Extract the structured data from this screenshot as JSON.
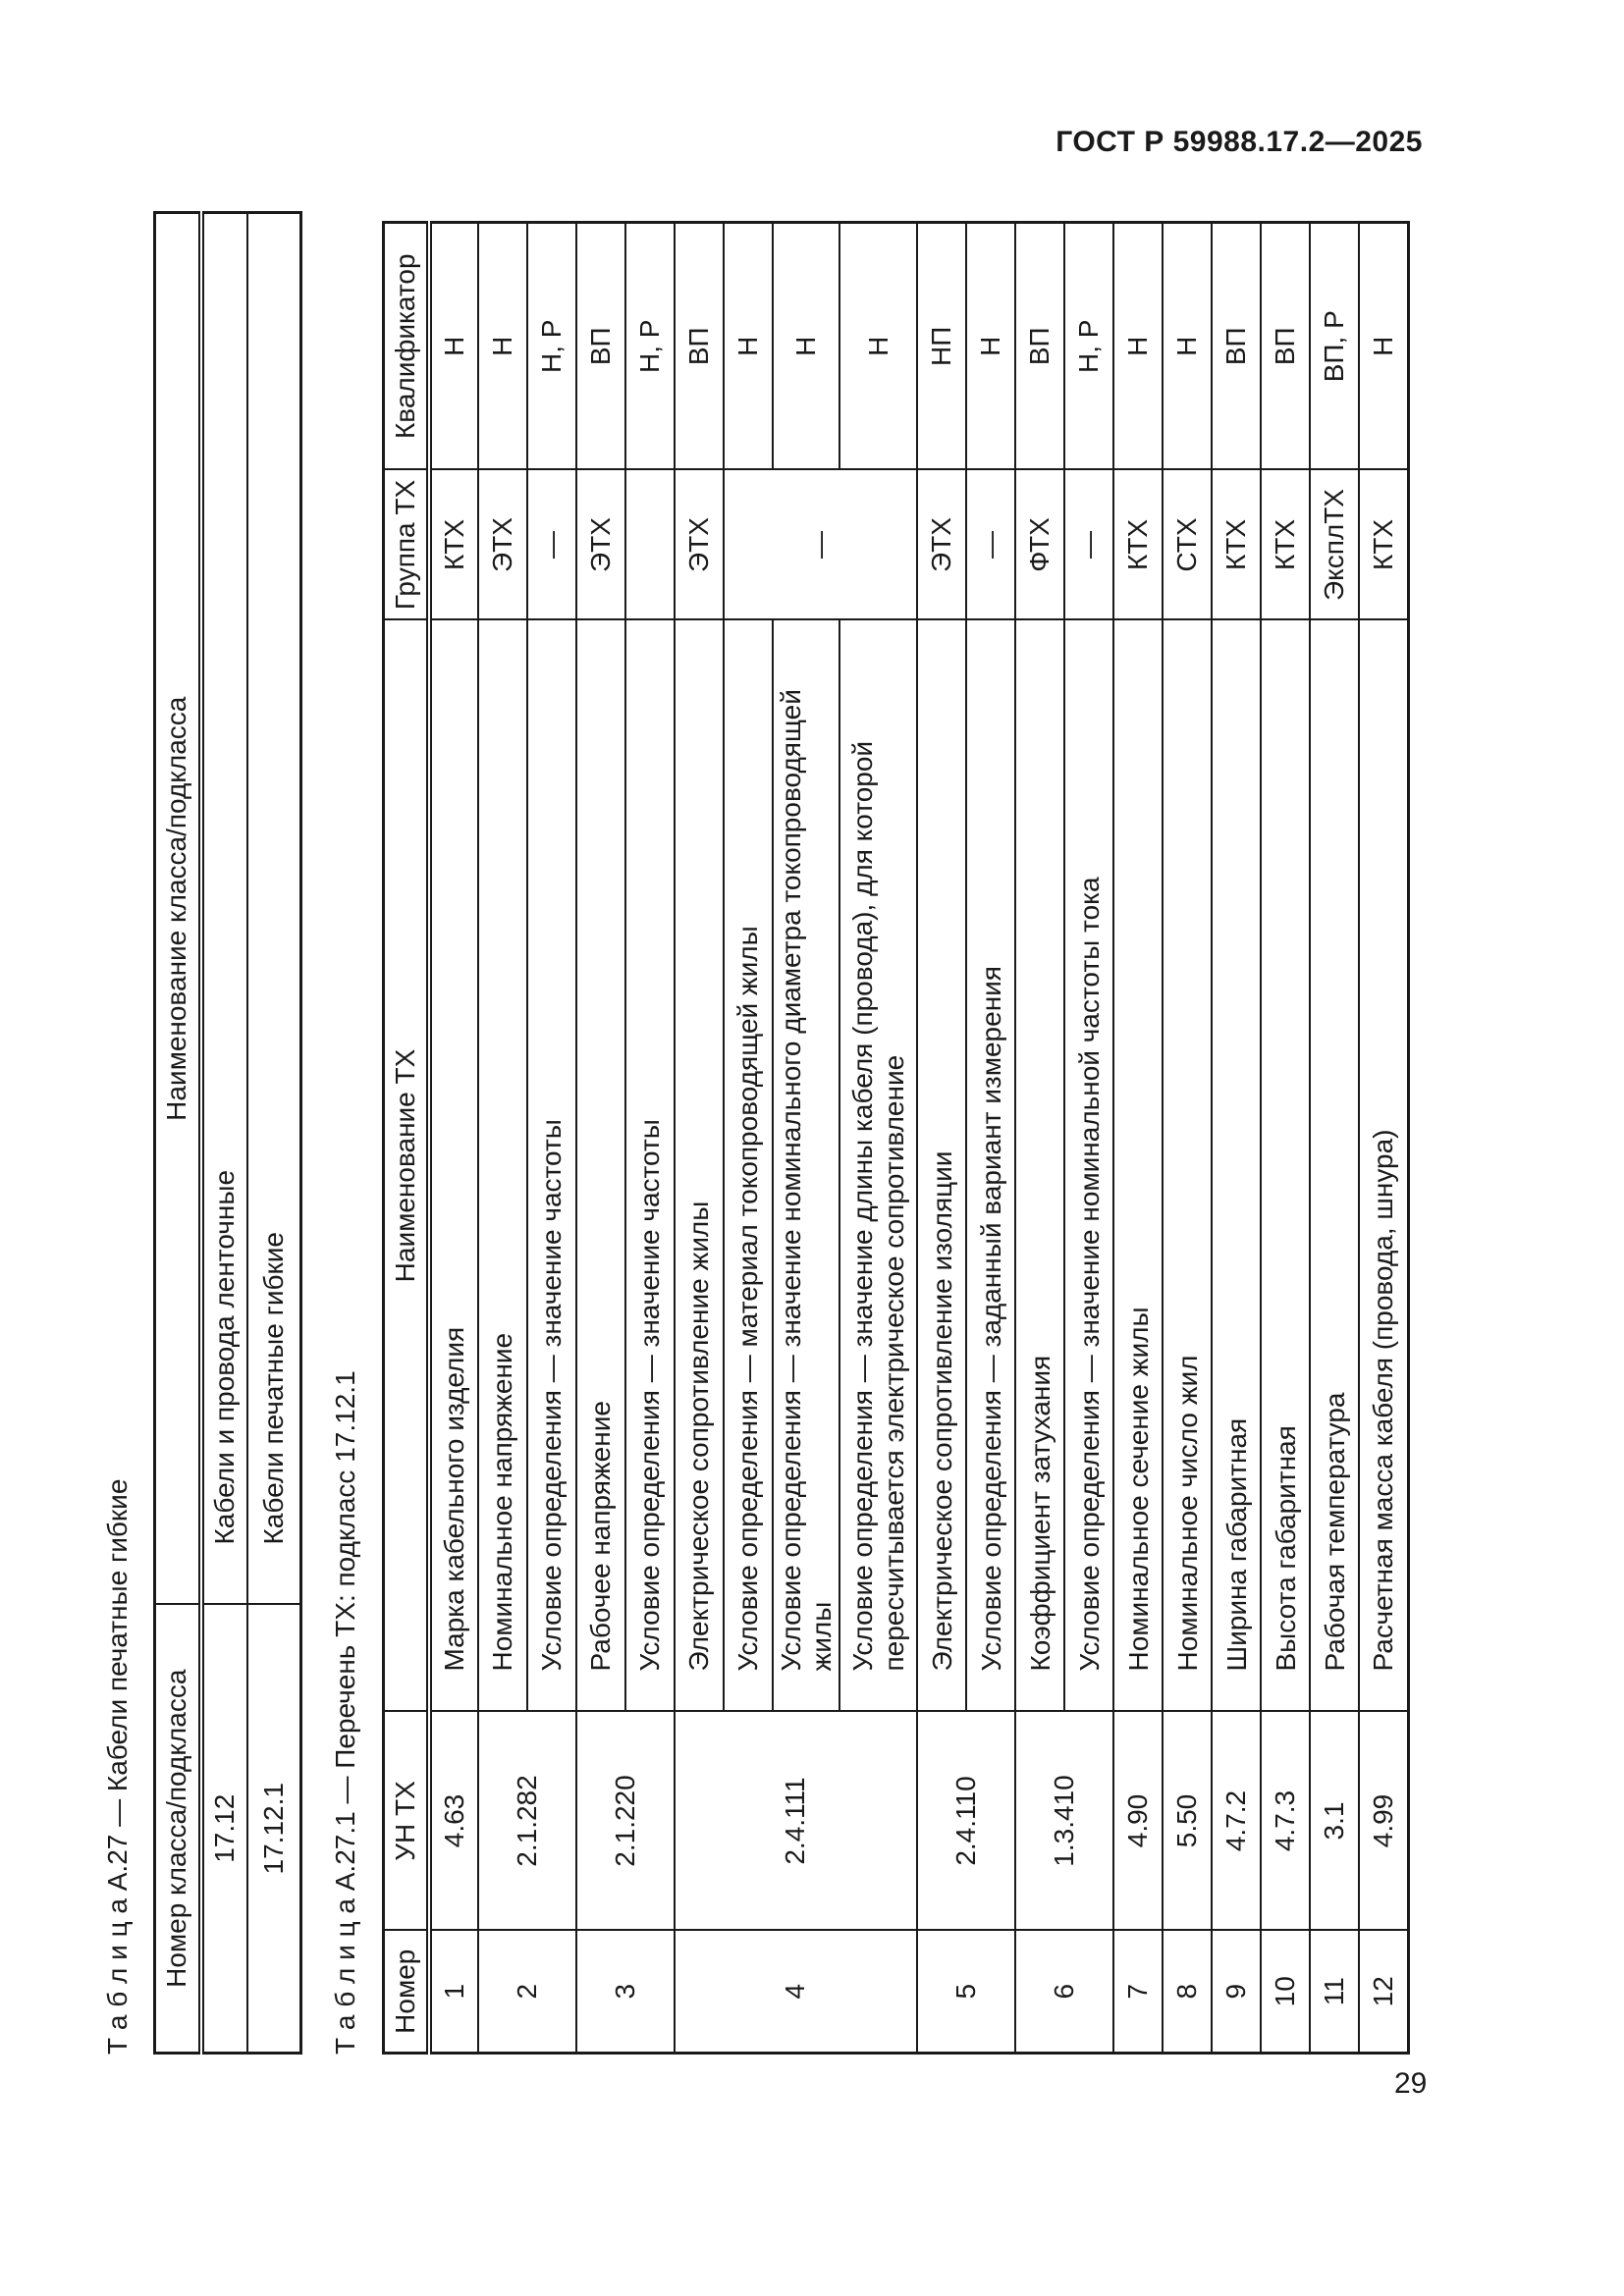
{
  "page": {
    "header": "ГОСТ Р 59988.17.2—2025",
    "page_number": "29"
  },
  "table1": {
    "title": "Т а б л и ц а   А.27 — Кабели печатные гибкие",
    "columns": [
      "Номер класса/подкласса",
      "Наименование класса/подкласса"
    ],
    "rows": [
      {
        "num": "17.12",
        "name": "Кабели и провода ленточные"
      },
      {
        "num": "17.12.1",
        "name": "Кабели печатные гибкие"
      }
    ]
  },
  "table2": {
    "title": "Т а б л и ц а   А.27.1 — Перечень ТХ: подкласс 17.12.1",
    "columns": [
      "Номер",
      "УН ТХ",
      "Наименование ТХ",
      "Группа ТХ",
      "Квалификатор"
    ],
    "rows": [
      {
        "num": "1",
        "un": "4.63",
        "num_span": 1,
        "name": "Марка кабельного изделия",
        "group": "КТХ",
        "qual": "Н"
      },
      {
        "num": "2",
        "un": "2.1.282",
        "num_span": 2,
        "name": "Номинальное напряжение",
        "group": "ЭТХ",
        "qual": "Н"
      },
      {
        "name": "Условие определения — значение частоты",
        "group": "—",
        "qual": "Н, Р"
      },
      {
        "num": "3",
        "un": "2.1.220",
        "num_span": 2,
        "name": "Рабочее напряжение",
        "group": "ЭТХ",
        "qual": "ВП"
      },
      {
        "name": "Условие определения — значение частоты",
        "group": "",
        "qual": "Н, Р"
      },
      {
        "num": "4",
        "un": "2.4.111",
        "num_span": 4,
        "name": "Электрическое сопротивление жилы",
        "group": "ЭТХ",
        "qual": "ВП"
      },
      {
        "name": "Условие определения — материал токопроводящей жилы",
        "group": "—",
        "group_span": 3,
        "qual": "Н"
      },
      {
        "name": "Условие определения — значение номинального диаметра токопроводящей жилы",
        "qual": "Н"
      },
      {
        "name": "Условие определения — значение длины кабеля (провода), для которой пересчитывается электрическое сопротивление",
        "qual": "Н",
        "tall": true
      },
      {
        "num": "5",
        "un": "2.4.110",
        "num_span": 2,
        "name": "Электрическое сопротивление изоляции",
        "group": "ЭТХ",
        "qual": "НП"
      },
      {
        "name": "Условие определения — заданный вариант измерения",
        "group": "—",
        "qual": "Н"
      },
      {
        "num": "6",
        "un": "1.3.410",
        "num_span": 2,
        "name": "Коэффициент затухания",
        "group": "ФТХ",
        "qual": "ВП"
      },
      {
        "name": "Условие определения — значение номинальной частоты тока",
        "group": "—",
        "qual": "Н, Р"
      },
      {
        "num": "7",
        "un": "4.90",
        "num_span": 1,
        "name": "Номинальное сечение жилы",
        "group": "КТХ",
        "qual": "Н"
      },
      {
        "num": "8",
        "un": "5.50",
        "num_span": 1,
        "name": "Номинальное число жил",
        "group": "СТХ",
        "qual": "Н"
      },
      {
        "num": "9",
        "un": "4.7.2",
        "num_span": 1,
        "name": "Ширина габаритная",
        "group": "КТХ",
        "qual": "ВП"
      },
      {
        "num": "10",
        "un": "4.7.3",
        "num_span": 1,
        "name": "Высота габаритная",
        "group": "КТХ",
        "qual": "ВП"
      },
      {
        "num": "11",
        "un": "3.1",
        "num_span": 1,
        "name": "Рабочая температура",
        "group": "ЭксплТХ",
        "qual": "ВП, Р"
      },
      {
        "num": "12",
        "un": "4.99",
        "num_span": 1,
        "name": "Расчетная масса кабеля (провода, шнура)",
        "group": "КТХ",
        "qual": "Н"
      }
    ]
  }
}
